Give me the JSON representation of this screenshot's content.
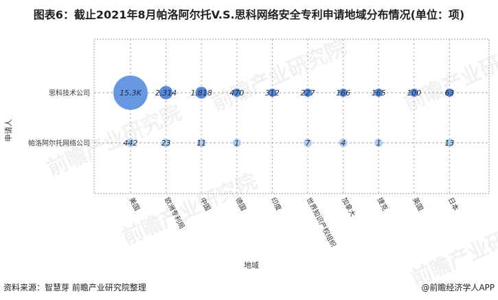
{
  "title": "图表6：截止2021年8月帕洛阿尔托V.S.思科网络安全专利申请地域分布情况(单位：项)",
  "footer": {
    "source": "资料来源：智慧芽 前瞻产业研究院整理",
    "brand": "@前瞻经济学人APP"
  },
  "watermark": "前瞻产业研究院",
  "colors": {
    "bubble_large": "#5b8fe0",
    "bubble_medium": "#4a7fd6",
    "bubble_light": "#aac8ef",
    "grid": "#9a9a9a"
  },
  "chart_data": {
    "type": "scatter",
    "xlabel": "地域",
    "ylabel": "申请人",
    "x_categories": [
      "美国",
      "欧洲专利局",
      "中国",
      "德国",
      "印度",
      "世界知识产权组织",
      "加拿大",
      "捷克",
      "英国",
      "日本"
    ],
    "y_categories": [
      "思科技术公司",
      "帕洛阿尔托网络公司"
    ],
    "series": [
      {
        "name": "思科技术公司",
        "values": [
          15300,
          2314,
          1818,
          470,
          312,
          227,
          166,
          165,
          100,
          63
        ],
        "labels": [
          "15.3K",
          "2,314",
          "1,818",
          "470",
          "312",
          "227",
          "166",
          "165",
          "100",
          "63"
        ]
      },
      {
        "name": "帕洛阿尔托网络公司",
        "values": [
          442,
          23,
          11,
          1,
          null,
          7,
          4,
          1,
          null,
          13
        ],
        "labels": [
          "442",
          "23",
          "11",
          "1",
          "",
          "7",
          "4",
          "1",
          "",
          "13"
        ]
      }
    ],
    "grid": true
  }
}
